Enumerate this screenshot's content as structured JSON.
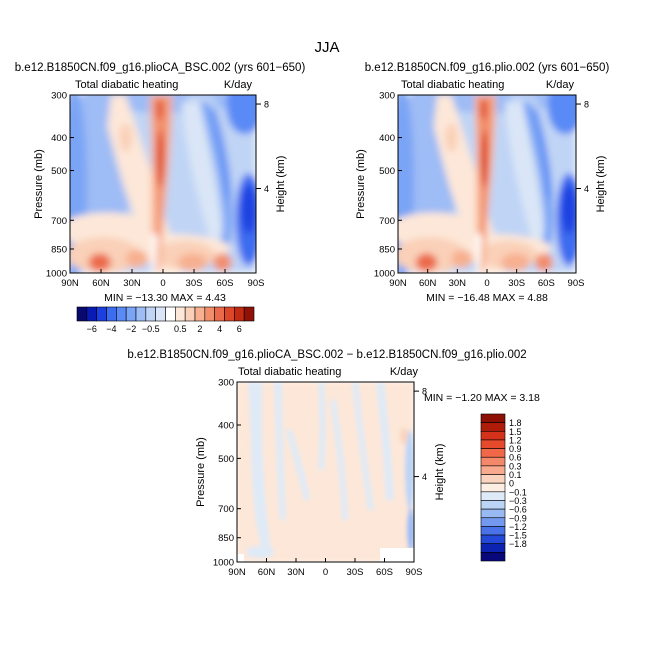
{
  "season": "JJA",
  "chart_data": [
    {
      "type": "heatmap",
      "title": "b.e12.B1850CN.f09_g16.plioCA_BSC.002 (yrs 601−650)",
      "left_label": "Total diabatic heating",
      "right_label": "K/day",
      "xlabel": "",
      "ylabel": "Pressure (mb)",
      "y2label": "Height (km)",
      "xticks": [
        "90N",
        "60N",
        "30N",
        "0",
        "30S",
        "60S",
        "90S"
      ],
      "yticks": [
        "300",
        "400",
        "500",
        "700",
        "850",
        "1000"
      ],
      "y2ticks": [
        "8",
        "4"
      ],
      "ylim": [
        1000,
        300
      ],
      "min": -13.3,
      "max": 4.43,
      "stats_text": "MIN = −13.30   MAX =    4.43"
    },
    {
      "type": "heatmap",
      "title": "b.e12.B1850CN.f09_g16.plio.002 (yrs 601−650)",
      "left_label": "Total diabatic heating",
      "right_label": "K/day",
      "xlabel": "",
      "ylabel": "Pressure (mb)",
      "y2label": "Height (km)",
      "xticks": [
        "90N",
        "60N",
        "30N",
        "0",
        "30S",
        "60S",
        "90S"
      ],
      "yticks": [
        "300",
        "400",
        "500",
        "700",
        "850",
        "1000"
      ],
      "y2ticks": [
        "8",
        "4"
      ],
      "ylim": [
        1000,
        300
      ],
      "min": -16.48,
      "max": 4.88,
      "stats_text": "MIN = −16.48   MAX =    4.88"
    },
    {
      "type": "heatmap",
      "title": "b.e12.B1850CN.f09_g16.plioCA_BSC.002 − b.e12.B1850CN.f09_g16.plio.002",
      "left_label": "Total diabatic heating",
      "right_label": "K/day",
      "xlabel": "",
      "ylabel": "Pressure (mb)",
      "y2label": "Height (km)",
      "xticks": [
        "90N",
        "60N",
        "30N",
        "0",
        "30S",
        "60S",
        "90S"
      ],
      "yticks": [
        "300",
        "400",
        "500",
        "700",
        "850",
        "1000"
      ],
      "y2ticks": [
        "8",
        "4"
      ],
      "ylim": [
        1000,
        300
      ],
      "min": -1.2,
      "max": 3.18,
      "stats_text": "MIN =   −1.20   MAX =    3.18"
    }
  ],
  "colorbar_top": {
    "labels": [
      "−6",
      "−4",
      "−2",
      "−0.5",
      "0.5",
      "2",
      "4",
      "6"
    ],
    "colors": [
      "#08086e",
      "#0a1ab4",
      "#1c40e0",
      "#3c6cf0",
      "#5a8af5",
      "#7aa4f5",
      "#9ebcf5",
      "#c0d4f5",
      "#dae6f7",
      "#ffffff",
      "#fde7d8",
      "#fad0b8",
      "#f7b090",
      "#f28e6c",
      "#ec6a4c",
      "#de4628",
      "#c22a14",
      "#901206"
    ]
  },
  "colorbar_diff": {
    "labels": [
      "1.8",
      "1.5",
      "1.2",
      "0.9",
      "0.6",
      "0.3",
      "0.1",
      "0",
      "−0.1",
      "−0.3",
      "−0.6",
      "−0.9",
      "−1.2",
      "−1.5",
      "−1.8"
    ],
    "colors": [
      "#8c1004",
      "#b01c0a",
      "#d4321a",
      "#e64a2c",
      "#f06848",
      "#f4886a",
      "#f7aa8e",
      "#fad4be",
      "#fdeee4",
      "#deeaf7",
      "#bcd4f5",
      "#98baf3",
      "#7298ef",
      "#4a72e8",
      "#2448d8",
      "#0c22b0",
      "#08087a"
    ]
  }
}
